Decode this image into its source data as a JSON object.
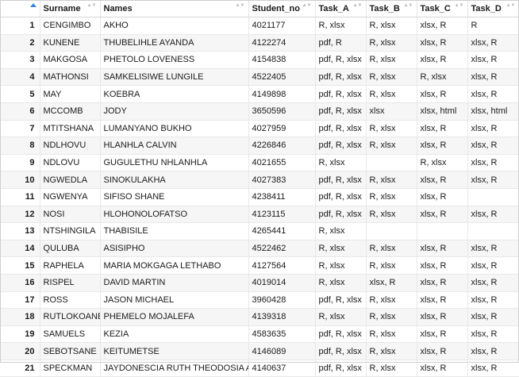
{
  "columns": [
    "Surname",
    "Names",
    "Student_no",
    "Task_A",
    "Task_B",
    "Task_C",
    "Task_D"
  ],
  "sorted_column": "row-number",
  "rows": [
    {
      "n": "1",
      "surname": "CENGIMBO",
      "names": "AKHO",
      "student_no": "4021177",
      "task_a": "R, xlsx",
      "task_b": "R, xlsx",
      "task_c": "xlsx, R",
      "task_d": "R"
    },
    {
      "n": "2",
      "surname": "KUNENE",
      "names": "THUBELIHLE AYANDA",
      "student_no": "4122274",
      "task_a": "pdf, R",
      "task_b": "R, xlsx",
      "task_c": "xlsx, R",
      "task_d": "xlsx, R"
    },
    {
      "n": "3",
      "surname": "MAKGOSA",
      "names": "PHETOLO LOVENESS",
      "student_no": "4154838",
      "task_a": "pdf, R, xlsx",
      "task_b": "R, xlsx",
      "task_c": "xlsx, R",
      "task_d": "xlsx, R"
    },
    {
      "n": "4",
      "surname": "MATHONSI",
      "names": "SAMKELISIWE LUNGILE",
      "student_no": "4522405",
      "task_a": "pdf, R, xlsx",
      "task_b": "R, xlsx",
      "task_c": "R, xlsx",
      "task_d": "xlsx, R"
    },
    {
      "n": "5",
      "surname": "MAY",
      "names": "KOEBRA",
      "student_no": "4149898",
      "task_a": "pdf, R, xlsx",
      "task_b": "R, xlsx",
      "task_c": "xlsx, R",
      "task_d": "xlsx, R"
    },
    {
      "n": "6",
      "surname": "MCCOMB",
      "names": "JODY",
      "student_no": "3650596",
      "task_a": "pdf, R, xlsx",
      "task_b": "xlsx",
      "task_c": "xlsx, html",
      "task_d": "xlsx, html"
    },
    {
      "n": "7",
      "surname": "MTITSHANA",
      "names": "LUMANYANO BUKHO",
      "student_no": "4027959",
      "task_a": "pdf, R, xlsx",
      "task_b": "R, xlsx",
      "task_c": "xlsx, R",
      "task_d": "xlsx, R"
    },
    {
      "n": "8",
      "surname": "NDLHOVU",
      "names": "HLANHLA CALVIN",
      "student_no": "4226846",
      "task_a": "pdf, R, xlsx",
      "task_b": "R, xlsx",
      "task_c": "xlsx, R",
      "task_d": "xlsx, R"
    },
    {
      "n": "9",
      "surname": "NDLOVU",
      "names": "GUGULETHU NHLANHLA",
      "student_no": "4021655",
      "task_a": "R, xlsx",
      "task_b": "",
      "task_c": "R, xlsx",
      "task_d": "xlsx, R"
    },
    {
      "n": "10",
      "surname": "NGWEDLA",
      "names": "SINOKULAKHA",
      "student_no": "4027383",
      "task_a": "pdf, R, xlsx",
      "task_b": "R, xlsx",
      "task_c": "xlsx, R",
      "task_d": "xlsx, R"
    },
    {
      "n": "11",
      "surname": "NGWENYA",
      "names": "SIFISO SHANE",
      "student_no": "4238411",
      "task_a": "pdf, R, xlsx",
      "task_b": "R, xlsx",
      "task_c": "xlsx, R",
      "task_d": ""
    },
    {
      "n": "12",
      "surname": "NOSI",
      "names": "HLOHONOLOFATSO",
      "student_no": "4123115",
      "task_a": "pdf, R, xlsx",
      "task_b": "R, xlsx",
      "task_c": "xlsx, R",
      "task_d": "xlsx, R"
    },
    {
      "n": "13",
      "surname": "NTSHINGILA",
      "names": "THABISILE",
      "student_no": "4265441",
      "task_a": "R, xlsx",
      "task_b": "",
      "task_c": "",
      "task_d": ""
    },
    {
      "n": "14",
      "surname": "QULUBA",
      "names": "ASISIPHO",
      "student_no": "4522462",
      "task_a": "R, xlsx",
      "task_b": "R, xlsx",
      "task_c": "xlsx, R",
      "task_d": "xlsx, R"
    },
    {
      "n": "15",
      "surname": "RAPHELA",
      "names": "MARIA MOKGAGA LETHABO",
      "student_no": "4127564",
      "task_a": "R, xlsx",
      "task_b": "R, xlsx",
      "task_c": "xlsx, R",
      "task_d": "xlsx, R"
    },
    {
      "n": "16",
      "surname": "RISPEL",
      "names": "DAVID MARTIN",
      "student_no": "4019014",
      "task_a": "R, xlsx",
      "task_b": "xlsx, R",
      "task_c": "xlsx, R",
      "task_d": "xlsx, R"
    },
    {
      "n": "17",
      "surname": "ROSS",
      "names": "JASON MICHAEL",
      "student_no": "3960428",
      "task_a": "pdf, R, xlsx",
      "task_b": "R, xlsx",
      "task_c": "xlsx, R",
      "task_d": "xlsx, R"
    },
    {
      "n": "18",
      "surname": "RUTLOKOANE",
      "names": "PHEMELO MOJALEFA",
      "student_no": "4139318",
      "task_a": "R, xlsx",
      "task_b": "R, xlsx",
      "task_c": "xlsx, R",
      "task_d": "xlsx, R"
    },
    {
      "n": "19",
      "surname": "SAMUELS",
      "names": "KEZIA",
      "student_no": "4583635",
      "task_a": "pdf, R, xlsx",
      "task_b": "R, xlsx",
      "task_c": "xlsx, R",
      "task_d": "xlsx, R"
    },
    {
      "n": "20",
      "surname": "SEBOTSANE",
      "names": "KEITUMETSE",
      "student_no": "4146089",
      "task_a": "pdf, R, xlsx",
      "task_b": "R, xlsx",
      "task_c": "xlsx, R",
      "task_d": "xlsx, R"
    },
    {
      "n": "21",
      "surname": "SPECKMAN",
      "names": "JAYDONESCIA RUTH THEODOSIA ATH",
      "student_no": "4140637",
      "task_a": "pdf, R, xlsx",
      "task_b": "R, xlsx",
      "task_c": "xlsx, R",
      "task_d": "xlsx, R"
    }
  ],
  "colors": {
    "sort_active": "#3b82d8",
    "stripe": "#f6f6f6",
    "border": "#e8e8e8"
  }
}
